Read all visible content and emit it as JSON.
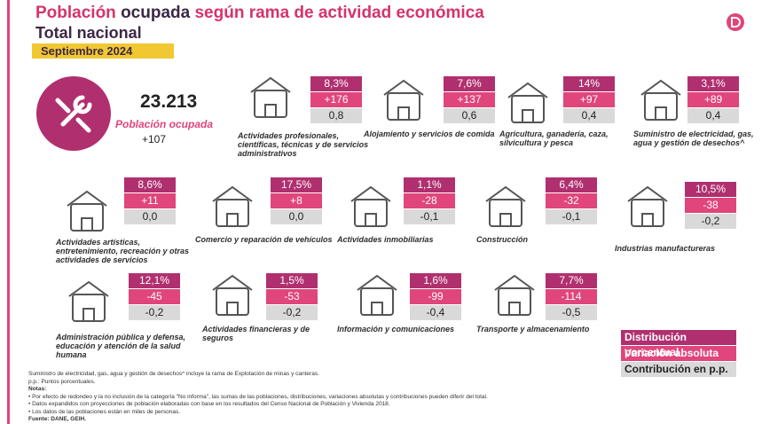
{
  "header": {
    "title_parts": [
      "Población",
      "ocupada",
      "según rama de actividad económica"
    ],
    "subtitle": "Total nacional",
    "period": "Septiembre 2024"
  },
  "summary": {
    "value": "23.213",
    "label": "Población ocupada",
    "change": "+107"
  },
  "sectors": [
    {
      "label": [
        "Actividades profesionales,",
        "científicas, técnicas y de servicios",
        "administrativos"
      ],
      "share": "8,3%",
      "change": "+176",
      "contribution": "0,8"
    },
    {
      "label": [
        "Alojamiento y servicios de comida"
      ],
      "share": "7,6%",
      "change": "+137",
      "contribution": "0,6"
    },
    {
      "label": [
        "Agricultura, ganadería, caza,",
        "silvicultura y pesca"
      ],
      "share": "14%",
      "change": "+97",
      "contribution": "0,4"
    },
    {
      "label": [
        "Suministro de electricidad, gas,",
        "agua y gestión de desechos^"
      ],
      "share": "3,1%",
      "change": "+89",
      "contribution": "0,4"
    },
    {
      "label": [
        "Actividades artísticas,",
        "entretenimiento, recreación y otras",
        "actividades de servicios"
      ],
      "share": "8,6%",
      "change": "+11",
      "contribution": "0,0"
    },
    {
      "label": [
        "Comercio y reparación de vehículos"
      ],
      "share": "17,5%",
      "change": "+8",
      "contribution": "0,0"
    },
    {
      "label": [
        "Actividades inmobiliarias"
      ],
      "share": "1,1%",
      "change": "-28",
      "contribution": "-0,1"
    },
    {
      "label": [
        "Construcción"
      ],
      "share": "6,4%",
      "change": "-32",
      "contribution": "-0,1"
    },
    {
      "label": [
        "Industrias manufactureras"
      ],
      "share": "10,5%",
      "change": "-38",
      "contribution": "-0,2"
    },
    {
      "label": [
        "Administración pública y defensa,",
        "educación y atención de la salud",
        "humana"
      ],
      "share": "12,1%",
      "change": "-45",
      "contribution": "-0,2"
    },
    {
      "label": [
        "Actividades financieras y de",
        "seguros"
      ],
      "share": "1,5%",
      "change": "-53",
      "contribution": "-0,2"
    },
    {
      "label": [
        "Información y comunicaciones"
      ],
      "share": "1,6%",
      "change": "-99",
      "contribution": "-0,4"
    },
    {
      "label": [
        "Transporte y almacenamiento"
      ],
      "share": "7,7%",
      "change": "-114",
      "contribution": "-0,5"
    }
  ],
  "legend": [
    "Distribución porcentual",
    "Variación absoluta",
    "Contribución en p.p."
  ],
  "footnotes": [
    "Suministro de electricidad, gas, agua y gestión de desechos^ incluye la rama de Explotación de minas y canteras.",
    "p.p.: Puntos porcentuales.",
    "Notas:",
    "• Por efecto de redondeo y la no inclusión de la categoría \"No informa\", las sumas de las poblaciones, distribuciones, variaciones absolutas y contribuciones pueden diferir del total.",
    "• Datos expandidos con proyecciones de población elaboradas con base en los resultados del Censo Nacional de Población y Vivienda 2018.",
    "• Los datos de las poblaciones están en miles de personas.",
    "Fuente: DANE, GEIH."
  ]
}
